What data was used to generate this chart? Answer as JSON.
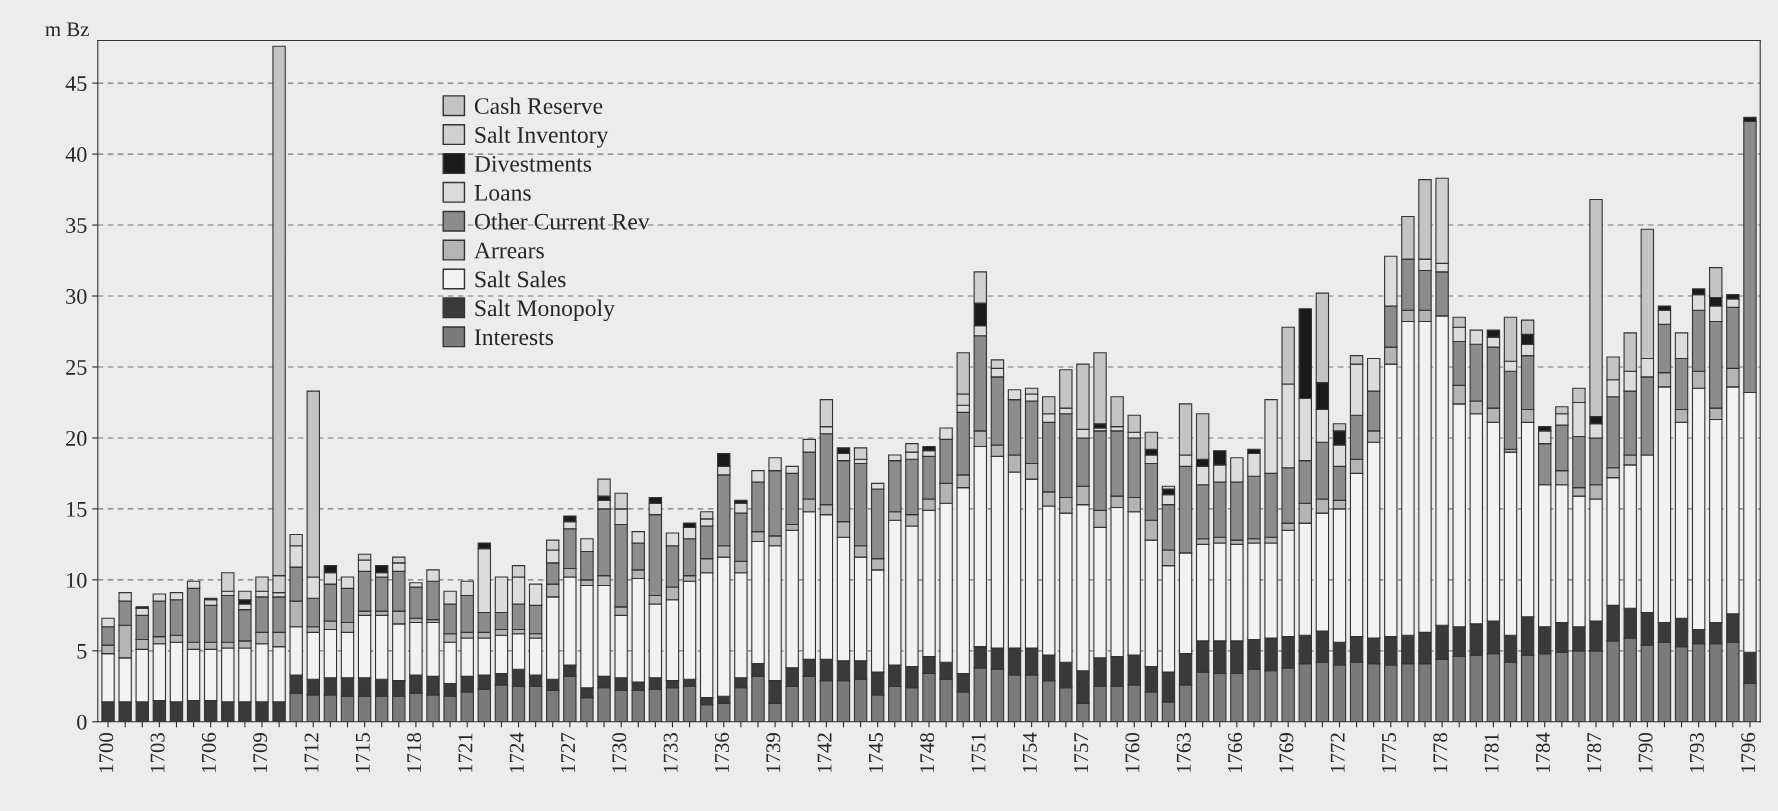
{
  "chart_data": {
    "type": "bar",
    "stacked": true,
    "ylabel": "m Bz",
    "categories": [
      "1700",
      null,
      null,
      "1703",
      null,
      null,
      "1706",
      null,
      null,
      "1709",
      null,
      null,
      "1712",
      null,
      null,
      "1715",
      null,
      null,
      "1718",
      null,
      null,
      "1721",
      null,
      null,
      "1724",
      null,
      null,
      "1727",
      null,
      null,
      "1730",
      null,
      null,
      "1733",
      null,
      null,
      "1736",
      null,
      null,
      "1739",
      null,
      null,
      "1742",
      null,
      null,
      "1745",
      null,
      null,
      "1748",
      null,
      null,
      "1751",
      null,
      null,
      "1754",
      null,
      null,
      "1757",
      null,
      null,
      "1760",
      null,
      null,
      "1763",
      null,
      null,
      "1766",
      null,
      null,
      "1769",
      null,
      null,
      "1772",
      null,
      null,
      "1775",
      null,
      null,
      "1778",
      null,
      null,
      "1781",
      null,
      null,
      "1784",
      null,
      null,
      "1787",
      null,
      null,
      "1790",
      null,
      null,
      "1793",
      null,
      null,
      "1796"
    ],
    "series": [
      {
        "name": "Interests",
        "color": "#7a7a7a",
        "values": [
          0,
          0,
          0,
          0,
          0,
          0,
          0,
          0,
          0,
          0,
          0,
          2.0,
          1.9,
          1.9,
          1.8,
          1.8,
          1.8,
          1.8,
          2.0,
          1.9,
          1.8,
          2.1,
          2.3,
          2.6,
          2.5,
          2.5,
          2.2,
          3.2,
          1.7,
          2.4,
          2.2,
          2.2,
          2.3,
          2.4,
          2.5,
          1.2,
          1.3,
          2.4,
          3.2,
          1.3,
          2.5,
          3.2,
          2.9,
          2.9,
          3.0,
          1.9,
          2.5,
          2.4,
          3.4,
          3.0,
          2.1,
          3.8,
          3.7,
          3.3,
          3.3,
          2.9,
          2.4,
          1.3,
          2.5,
          2.5,
          2.6,
          2.1,
          1.4,
          2.6,
          3.5,
          3.4,
          3.4,
          3.7,
          3.6,
          3.8,
          4.1,
          4.2,
          4.0,
          4.2,
          4.1,
          4.0,
          4.1,
          4.1,
          4.4,
          4.6,
          4.7,
          4.8,
          4.2,
          4.7,
          4.8,
          4.9,
          5.0,
          5.0,
          5.7,
          5.9,
          5.4,
          5.6,
          5.3,
          5.5,
          5.5,
          5.6,
          2.7
        ]
      },
      {
        "name": "Salt Monopoly",
        "color": "#3a3a3a",
        "values": [
          1.4,
          1.4,
          1.4,
          1.5,
          1.4,
          1.5,
          1.5,
          1.4,
          1.4,
          1.4,
          1.4,
          1.3,
          1.1,
          1.2,
          1.3,
          1.3,
          1.2,
          1.1,
          1.3,
          1.3,
          0.9,
          1.1,
          1.0,
          0.8,
          1.2,
          0.8,
          0.8,
          0.8,
          0.7,
          0.8,
          0.9,
          0.6,
          0.8,
          0.5,
          0.5,
          0.5,
          0.5,
          0.7,
          0.9,
          1.6,
          1.3,
          1.2,
          1.5,
          1.4,
          1.3,
          1.6,
          1.5,
          1.5,
          1.2,
          1.2,
          1.3,
          1.5,
          1.5,
          1.9,
          1.9,
          1.8,
          1.8,
          2.3,
          2.0,
          2.1,
          2.1,
          1.8,
          2.1,
          2.2,
          2.2,
          2.3,
          2.3,
          2.1,
          2.3,
          2.2,
          2.0,
          2.2,
          1.6,
          1.8,
          1.8,
          2.0,
          2.0,
          2.2,
          2.4,
          2.1,
          2.2,
          2.3,
          1.9,
          2.7,
          1.9,
          2.1,
          1.7,
          2.1,
          2.5,
          2.1,
          2.3,
          1.4,
          2.0,
          1.0,
          1.5,
          2.0,
          2.2
        ]
      },
      {
        "name": "Salt Sales",
        "color": "#f2f2f2",
        "values": [
          3.4,
          3.1,
          3.7,
          4.0,
          4.2,
          3.6,
          3.6,
          3.8,
          3.8,
          4.1,
          3.9,
          3.4,
          3.3,
          3.4,
          3.2,
          4.4,
          4.5,
          4.0,
          3.7,
          3.8,
          2.9,
          2.7,
          2.6,
          2.7,
          2.5,
          2.6,
          5.8,
          6.2,
          7.2,
          6.4,
          4.4,
          7.3,
          5.2,
          5.7,
          6.9,
          8.8,
          9.8,
          7.4,
          8.6,
          9.5,
          9.7,
          10.4,
          10.2,
          8.7,
          7.3,
          7.2,
          10.2,
          9.9,
          10.3,
          11.2,
          13.1,
          14.1,
          13.5,
          12.4,
          11.9,
          10.5,
          10.5,
          11.7,
          9.2,
          10.5,
          10.1,
          8.9,
          7.5,
          7.1,
          6.8,
          6.9,
          6.8,
          6.8,
          6.7,
          7.5,
          7.9,
          8.3,
          9.4,
          11.5,
          13.8,
          19.2,
          22.1,
          21.9,
          21.8,
          15.7,
          14.8,
          14.0,
          12.9,
          13.7,
          10.0,
          9.7,
          9.2,
          8.6,
          9.0,
          10.1,
          11.1,
          16.6,
          13.8,
          17.0,
          14.3,
          16.0,
          18.3
        ]
      },
      {
        "name": "Arrears",
        "color": "#b4b4b4",
        "values": [
          0.6,
          2.3,
          0.7,
          0.5,
          0.5,
          0.5,
          0.5,
          0.4,
          0.5,
          0.8,
          1.0,
          1.8,
          0.4,
          0.6,
          0.7,
          0.3,
          0.3,
          0.9,
          0.3,
          0.2,
          0.6,
          0.4,
          0.4,
          0.4,
          0.3,
          0.3,
          0.9,
          0.6,
          0.4,
          0.7,
          0.6,
          0.6,
          0.6,
          0.9,
          0.4,
          1.0,
          0.8,
          0.8,
          0.7,
          0.7,
          0.4,
          0.9,
          0.7,
          1.1,
          0.8,
          0.8,
          0.6,
          0.8,
          0.8,
          1.4,
          0.9,
          1.1,
          0.8,
          1.2,
          1.1,
          1.0,
          1.1,
          1.3,
          1.2,
          0.8,
          1.0,
          1.4,
          1.1,
          0,
          0.4,
          0.4,
          0.3,
          0.3,
          0.4,
          0.5,
          1.4,
          1.0,
          0.6,
          1.0,
          0.8,
          1.2,
          0.8,
          0.8,
          0,
          1.3,
          0.9,
          1.0,
          0.2,
          0.9,
          0,
          1.0,
          0.6,
          1.0,
          0.7,
          0.7,
          0,
          1.0,
          0.9,
          1.2,
          0.8,
          1.3,
          0
        ]
      },
      {
        "name": "Other Current Rev",
        "color": "#8c8c8c",
        "values": [
          1.3,
          1.7,
          1.7,
          2.5,
          2.5,
          3.8,
          2.6,
          3.3,
          2.2,
          2.5,
          2.5,
          2.4,
          2.0,
          2.6,
          2.4,
          2.8,
          2.4,
          2.8,
          2.2,
          2.7,
          2.1,
          2.6,
          1.4,
          1.2,
          1.8,
          2.0,
          1.5,
          2.8,
          2.0,
          4.7,
          5.8,
          1.9,
          5.7,
          2.9,
          2.6,
          2.3,
          5.0,
          3.4,
          3.5,
          4.6,
          3.6,
          3.3,
          5.0,
          4.3,
          5.8,
          4.9,
          3.6,
          3.9,
          3.0,
          3.1,
          4.4,
          6.7,
          4.8,
          3.9,
          4.4,
          4.9,
          5.9,
          3.4,
          5.6,
          4.6,
          4.2,
          4.0,
          3.2,
          6.1,
          3.8,
          3.9,
          4.1,
          4.4,
          4.5,
          3.9,
          3.0,
          4.0,
          2.4,
          3.1,
          2.8,
          2.9,
          3.6,
          2.8,
          3.1,
          3.1,
          4.0,
          4.3,
          5.5,
          3.8,
          2.9,
          3.2,
          3.6,
          3.3,
          5.0,
          4.5,
          5.5,
          3.4,
          3.6,
          4.3,
          6.1,
          4.3,
          19.1
        ]
      },
      {
        "name": "Loans",
        "color": "#dcdcdc",
        "values": [
          0.6,
          0.6,
          0.5,
          0.5,
          0.5,
          0.5,
          0.4,
          0.3,
          0.4,
          0.4,
          0.3,
          1.5,
          1.5,
          0.8,
          0.8,
          0.8,
          0.3,
          0.6,
          0.3,
          0.8,
          0.9,
          1.0,
          4.5,
          2.5,
          1.9,
          1.5,
          0.9,
          0.5,
          0.9,
          0.6,
          1.1,
          0.8,
          0.8,
          0.9,
          0.8,
          0.5,
          0.6,
          0.7,
          0.8,
          0.9,
          0.5,
          0.9,
          0.5,
          0.5,
          0.3,
          0.4,
          0.4,
          0.5,
          0.4,
          0.8,
          0.5,
          0.7,
          0.6,
          0.7,
          0.5,
          0.6,
          0.4,
          0.6,
          0.2,
          0.3,
          0.4,
          0.6,
          0.7,
          0.8,
          1.3,
          1.2,
          1.7,
          1.6,
          5.2,
          5.9,
          4.4,
          2.3,
          1.5,
          3.6,
          2.3,
          3.5,
          0,
          0.8,
          0.6,
          1.0,
          1.0,
          0.7,
          0.7,
          0.8,
          0.9,
          0.8,
          2.4,
          1.0,
          1.2,
          1.4,
          1.3,
          1.0,
          1.8,
          1.1,
          1.1,
          0.6,
          0
        ]
      },
      {
        "name": "Divestments",
        "color": "#1a1a1a",
        "values": [
          0,
          0,
          0.1,
          0,
          0,
          0,
          0.1,
          0,
          0.3,
          0,
          0,
          0,
          0,
          0.5,
          0,
          0,
          0.5,
          0,
          0,
          0,
          0,
          0,
          0.4,
          0,
          0,
          0,
          0,
          0.4,
          0,
          0.3,
          0,
          0,
          0.4,
          0,
          0.3,
          0,
          0.9,
          0.2,
          0,
          0,
          0,
          0,
          0,
          0.4,
          0,
          0,
          0,
          0,
          0.3,
          0,
          0,
          1.6,
          0,
          0,
          0,
          0,
          0,
          0,
          0.3,
          0,
          0,
          0.4,
          0.4,
          0,
          0.5,
          1.0,
          0,
          0.3,
          0,
          0,
          6.3,
          1.9,
          1.0,
          0,
          0,
          0,
          0,
          0,
          0,
          0,
          0,
          0.5,
          0,
          0.7,
          0.3,
          0,
          0,
          0.5,
          0,
          0,
          0,
          0.3,
          0,
          0.4,
          0.6,
          0.3,
          0.3
        ]
      },
      {
        "name": "Salt Inventory",
        "color": "#d0d0d0",
        "values": [
          0,
          0,
          0,
          0,
          0,
          0,
          0,
          1.3,
          0.6,
          1.0,
          1.2,
          0.8,
          0,
          0,
          0,
          0.4,
          0,
          0.4,
          0,
          0,
          0,
          0,
          0,
          0,
          0.8,
          0,
          0.7,
          0,
          0,
          1.2,
          1.1,
          0,
          0,
          0,
          0,
          0.5,
          0,
          0,
          0,
          0,
          0,
          0,
          1.9,
          0,
          0.8,
          0,
          0,
          0.6,
          0,
          0,
          0.8,
          2.2,
          0.6,
          0,
          0.4,
          0,
          0,
          0,
          0,
          0,
          0,
          0,
          0.2,
          0,
          0,
          0,
          0,
          0,
          0,
          0,
          0,
          0,
          0,
          0,
          0,
          0,
          0,
          0,
          6.0,
          0,
          0,
          0,
          0,
          0,
          0,
          0,
          0,
          0,
          0,
          0,
          0,
          0,
          0,
          0,
          0,
          0,
          0
        ]
      },
      {
        "name": "Cash Reserve",
        "color": "#c4c4c4",
        "values": [
          0,
          0,
          0,
          0,
          0,
          0,
          0,
          0,
          0,
          0,
          37.3,
          0,
          13.1,
          0,
          0,
          0,
          0,
          0,
          0,
          0,
          0,
          0,
          0,
          0,
          0,
          0,
          0,
          0,
          0,
          0,
          0,
          0,
          0,
          0,
          0,
          0,
          0,
          0,
          0,
          0,
          0,
          0,
          0,
          0,
          0,
          0,
          0,
          0,
          0,
          0,
          2.9,
          0,
          0,
          0,
          0,
          1.2,
          2.7,
          4.6,
          5.0,
          2.1,
          1.2,
          1.2,
          0,
          3.6,
          3.2,
          0,
          0,
          0,
          0,
          4.0,
          0,
          6.3,
          0.5,
          0.6,
          0,
          0,
          3.0,
          5.6,
          0,
          0.7,
          0,
          0,
          3.1,
          1.0,
          0,
          0.5,
          1.0,
          15.3,
          1.6,
          2.7,
          9.1,
          0,
          0,
          0,
          2.1,
          0,
          0
        ]
      }
    ],
    "ylim": [
      0,
      48
    ],
    "yticks": [
      0,
      5,
      10,
      15,
      20,
      25,
      30,
      35,
      40,
      45
    ],
    "grid": "y",
    "legend": "top left"
  }
}
